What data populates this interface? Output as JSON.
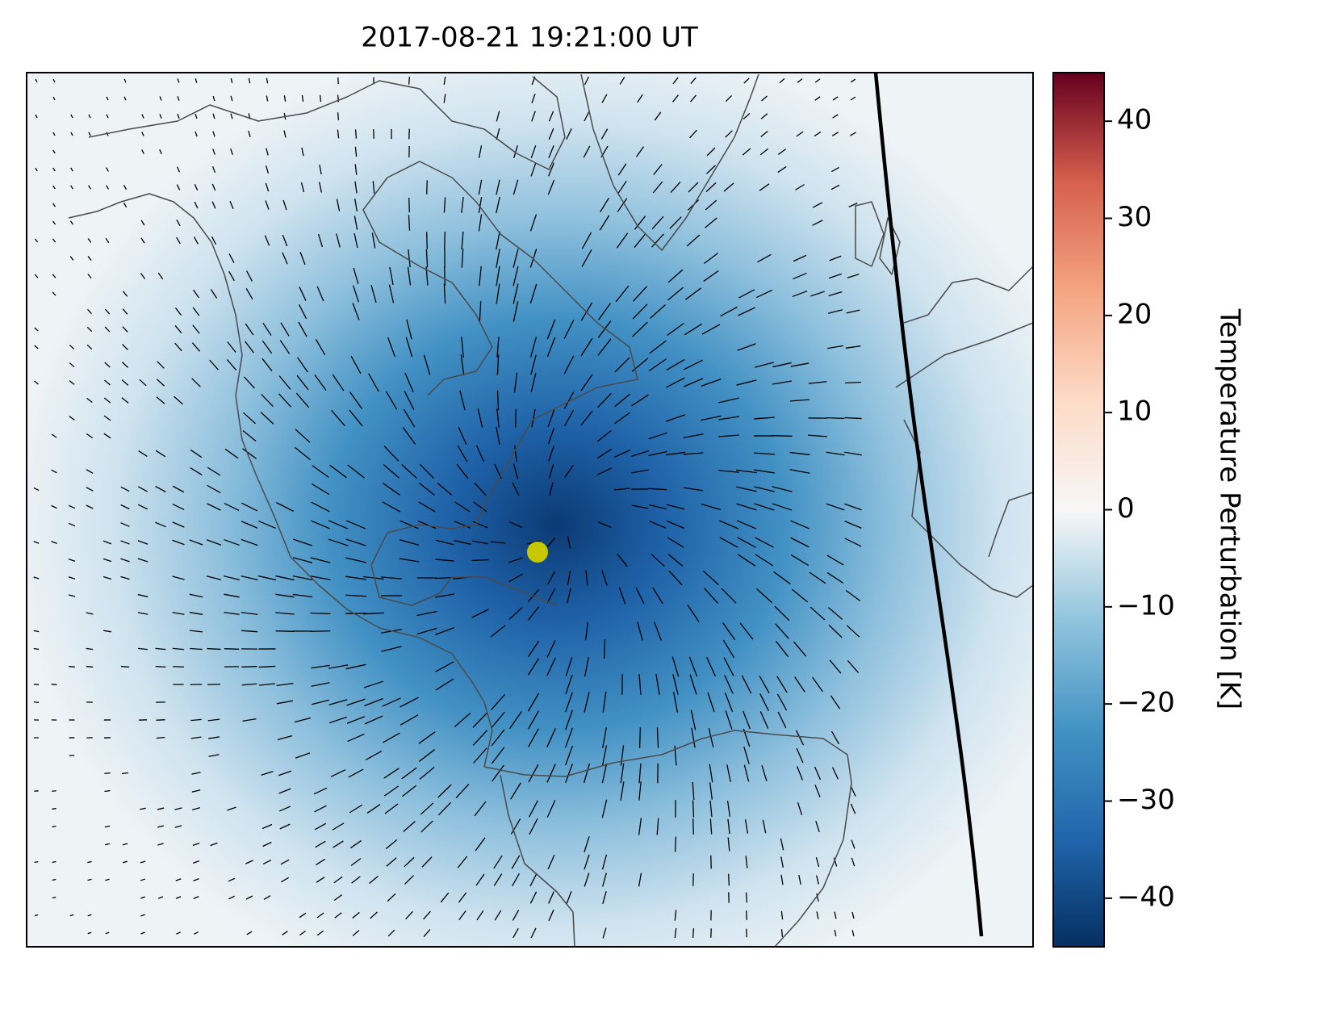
{
  "title": "2017-08-21 19:21:00 UT",
  "colorbar": {
    "label": "Temperature Perturbation [K]",
    "lim": [
      -45,
      45
    ],
    "ticks": [
      40,
      30,
      20,
      10,
      0,
      {
        "value": -10,
        "label": "−10"
      },
      {
        "value": -20,
        "label": "−20"
      },
      {
        "value": -30,
        "label": "−30"
      },
      {
        "value": -40,
        "label": "−40"
      }
    ]
  }
}
